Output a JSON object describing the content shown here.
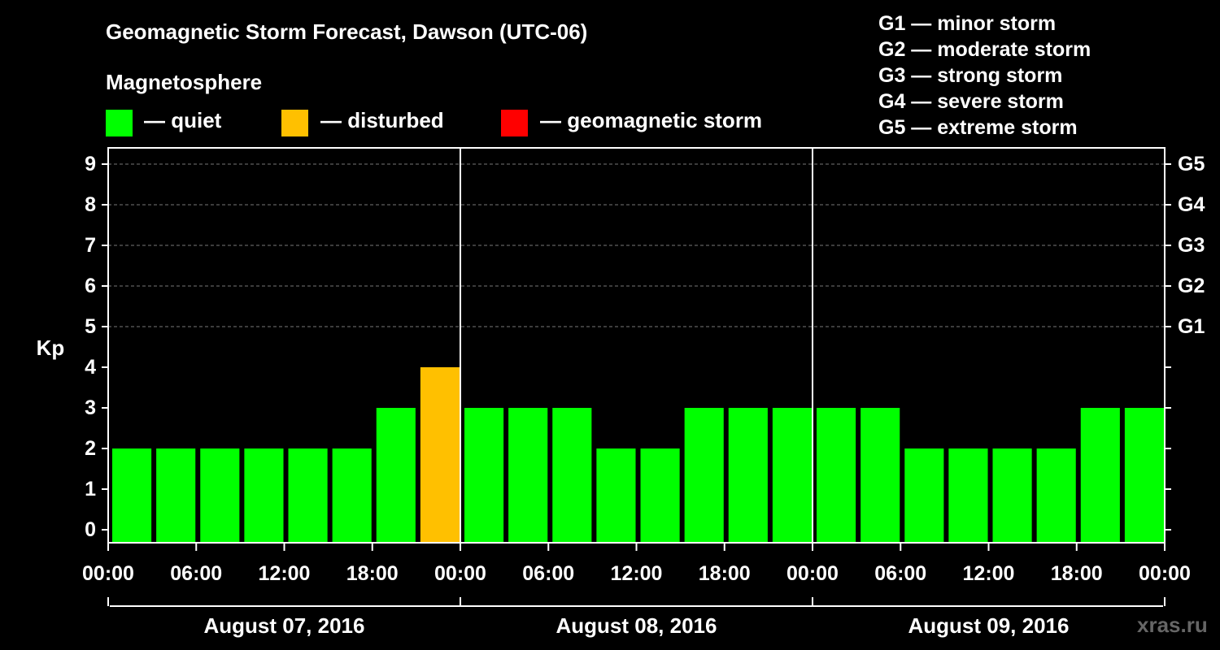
{
  "header": {
    "title": "Geomagnetic Storm Forecast, Dawson (UTC-06)",
    "subtitle": "Magnetosphere"
  },
  "legend": [
    {
      "label": "— quiet",
      "color": "#00ff00"
    },
    {
      "label": "— disturbed",
      "color": "#ffc000"
    },
    {
      "label": "— geomagnetic storm",
      "color": "#ff0000"
    }
  ],
  "storm_scale": [
    "G1 — minor storm",
    "G2 — moderate storm",
    "G3 — strong storm",
    "G4 — severe storm",
    "G5 — extreme storm"
  ],
  "credit": "xras.ru",
  "chart_data": {
    "type": "bar",
    "ylabel": "Kp",
    "ylim": [
      0,
      9
    ],
    "yticks": [
      "0",
      "1",
      "2",
      "3",
      "4",
      "5",
      "6",
      "7",
      "8",
      "9"
    ],
    "right_ticks": [
      {
        "value": 5,
        "label": "G1"
      },
      {
        "value": 6,
        "label": "G2"
      },
      {
        "value": 7,
        "label": "G3"
      },
      {
        "value": 8,
        "label": "G4"
      },
      {
        "value": 9,
        "label": "G5"
      }
    ],
    "x_tick_labels": [
      "00:00",
      "06:00",
      "12:00",
      "18:00",
      "00:00",
      "06:00",
      "12:00",
      "18:00",
      "00:00",
      "06:00",
      "12:00",
      "18:00",
      "00:00"
    ],
    "days": [
      "August 07, 2016",
      "August 08, 2016",
      "August 09, 2016"
    ],
    "interval_hours": 3,
    "values": [
      2,
      2,
      2,
      2,
      2,
      2,
      3,
      4,
      3,
      3,
      3,
      2,
      2,
      3,
      3,
      3,
      3,
      3,
      2,
      2,
      2,
      2,
      3,
      3
    ],
    "colors": {
      "quiet": "#00ff00",
      "disturbed": "#ffc000",
      "storm": "#ff0000"
    },
    "grid": true
  }
}
